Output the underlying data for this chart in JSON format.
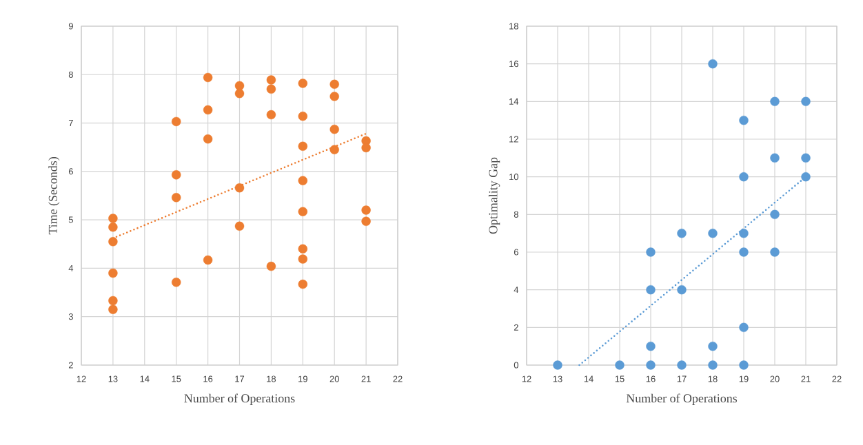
{
  "chart_data": [
    {
      "type": "scatter",
      "xlabel": "Number of Operations",
      "ylabel": "Time (Seconds)",
      "xlim": [
        12,
        22
      ],
      "ylim": [
        2,
        9
      ],
      "xticks": [
        12,
        13,
        14,
        15,
        16,
        17,
        18,
        19,
        20,
        21,
        22
      ],
      "yticks": [
        2,
        3,
        4,
        5,
        6,
        7,
        8,
        9
      ],
      "grid": true,
      "series": [
        {
          "color": "#ed7d31",
          "marker": "circle",
          "x": [
            13,
            13,
            13,
            13,
            13,
            13,
            15,
            15,
            15,
            15,
            16,
            16,
            16,
            16,
            17,
            17,
            17,
            17,
            18,
            18,
            18,
            18,
            19,
            19,
            19,
            19,
            19,
            19,
            19,
            19,
            20,
            20,
            20,
            20,
            21,
            21,
            21,
            21
          ],
          "values": [
            5.03,
            4.85,
            4.55,
            3.9,
            3.33,
            3.15,
            7.03,
            5.93,
            5.46,
            3.71,
            7.94,
            7.27,
            6.67,
            4.17,
            7.77,
            7.61,
            5.66,
            4.87,
            7.89,
            7.7,
            7.17,
            4.04,
            7.82,
            7.14,
            6.52,
            5.81,
            5.17,
            4.4,
            4.19,
            3.67,
            7.8,
            7.55,
            6.87,
            6.45,
            6.63,
            6.49,
            5.2,
            4.97
          ]
        },
        {
          "type": "line",
          "color": "#ed7d31",
          "line_style": "dotted",
          "marker": "none",
          "x": [
            13,
            21
          ],
          "values": [
            4.62,
            6.78
          ]
        }
      ]
    },
    {
      "type": "scatter",
      "xlabel": "Number of Operations",
      "ylabel": "Optimality Gap",
      "xlim": [
        12,
        22
      ],
      "ylim": [
        0,
        18
      ],
      "xticks": [
        12,
        13,
        14,
        15,
        16,
        17,
        18,
        19,
        20,
        21,
        22
      ],
      "yticks": [
        0,
        2,
        4,
        6,
        8,
        10,
        12,
        14,
        16,
        18
      ],
      "grid": true,
      "series": [
        {
          "color": "#5b9bd5",
          "marker": "circle",
          "x": [
            13,
            15,
            16,
            16,
            16,
            16,
            17,
            17,
            17,
            18,
            18,
            18,
            18,
            19,
            19,
            19,
            19,
            19,
            19,
            20,
            20,
            20,
            20,
            21,
            21,
            21
          ],
          "values": [
            0,
            0,
            6,
            4,
            1,
            0,
            7,
            4,
            0,
            16,
            7,
            1,
            0,
            13,
            10,
            7,
            6,
            2,
            0,
            14,
            11,
            8,
            6,
            14,
            11,
            10
          ]
        },
        {
          "type": "line",
          "color": "#5b9bd5",
          "line_style": "dotted",
          "marker": "none",
          "x": [
            13.7,
            21
          ],
          "values": [
            0,
            10
          ]
        }
      ]
    }
  ]
}
